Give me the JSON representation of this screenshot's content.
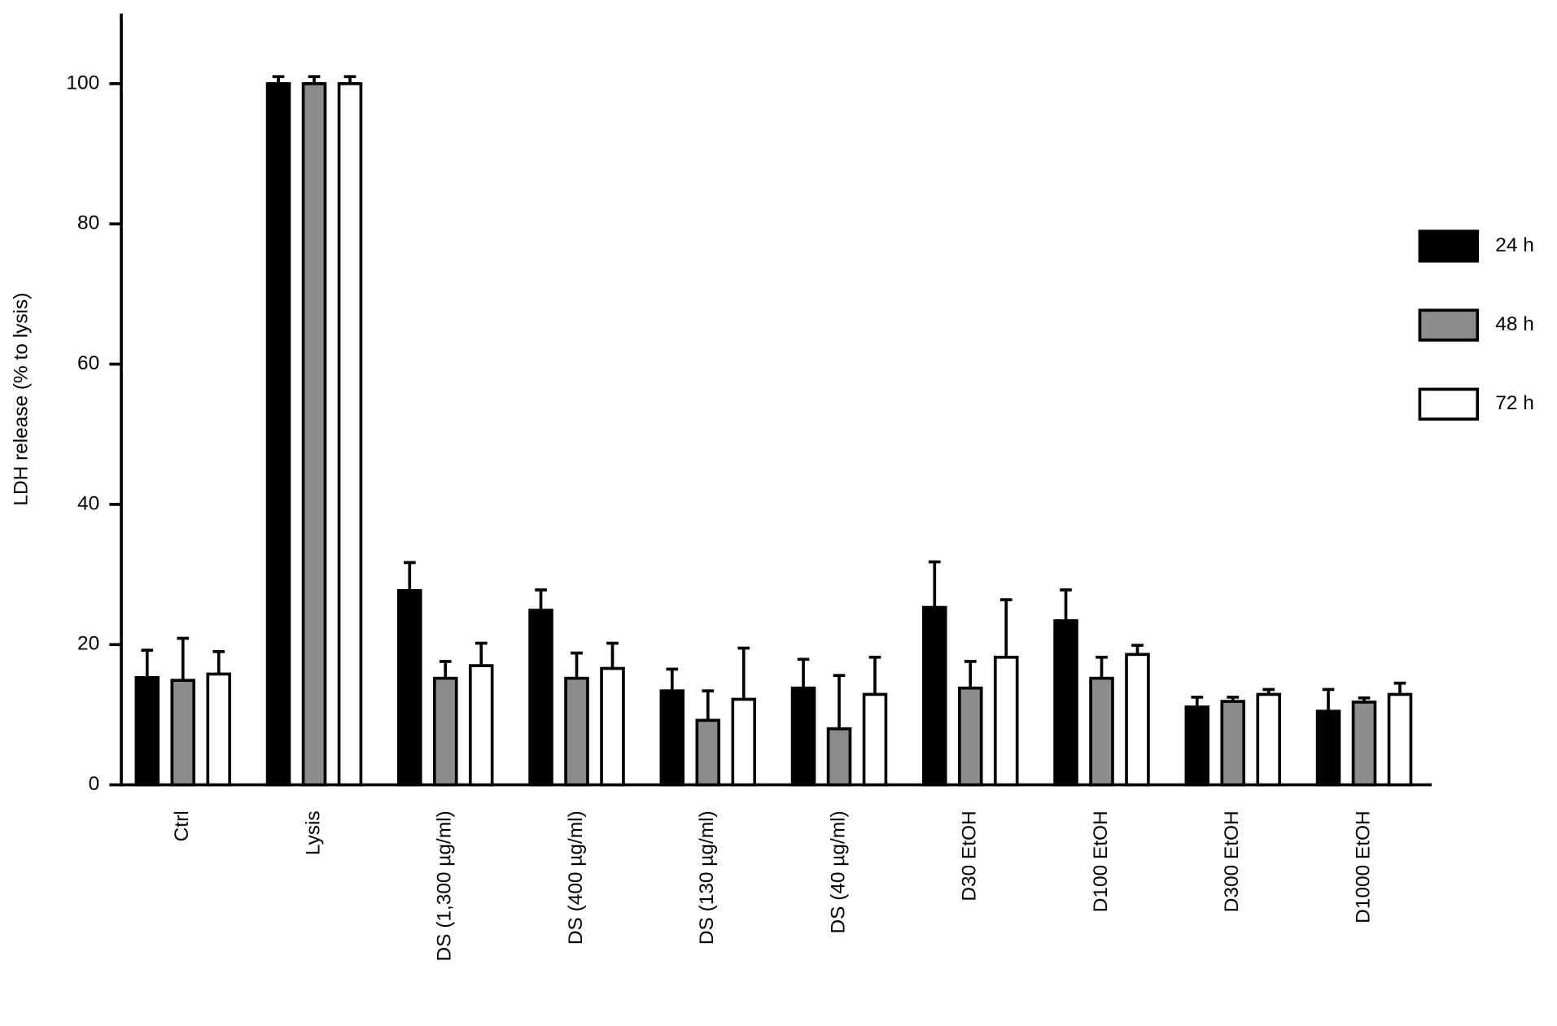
{
  "chart_data": {
    "type": "bar",
    "y_label": "LDH release (% to lysis)",
    "categories": [
      "Ctrl",
      "Lysis",
      "DS (1,300 µg/ml)",
      "DS (400 µg/ml)",
      "DS (130 µg/ml)",
      "DS (40 µg/ml)",
      "D30 EtOH",
      "D100 EtOH",
      "D300 EtOH",
      "D1000 EtOH"
    ],
    "series": [
      {
        "name": "24 h",
        "color": "#000000",
        "values": [
          15.3,
          100,
          27.7,
          24.9,
          13.4,
          13.8,
          25.3,
          23.4,
          11.1,
          10.5
        ],
        "errors": [
          3.9,
          1,
          4.0,
          2.9,
          3.1,
          4.1,
          6.5,
          4.4,
          1.4,
          3.1
        ]
      },
      {
        "name": "48 h",
        "color": "#8c8c8c",
        "values": [
          14.9,
          100,
          15.2,
          15.2,
          9.2,
          8.0,
          13.8,
          15.2,
          11.9,
          11.8
        ],
        "errors": [
          6.0,
          1,
          2.4,
          3.6,
          4.2,
          7.6,
          3.8,
          3.0,
          0.6,
          0.6
        ]
      },
      {
        "name": "72 h",
        "color": "#ffffff",
        "values": [
          15.8,
          100,
          17.0,
          16.6,
          12.2,
          12.9,
          18.2,
          18.6,
          12.9,
          12.9
        ],
        "errors": [
          3.2,
          1,
          3.2,
          3.6,
          7.3,
          5.3,
          8.2,
          1.3,
          0.7,
          1.6
        ]
      }
    ],
    "ylim": [
      0,
      110
    ],
    "yticks": [
      0,
      20,
      40,
      60,
      80,
      100
    ],
    "grid": false,
    "legend": "right"
  }
}
